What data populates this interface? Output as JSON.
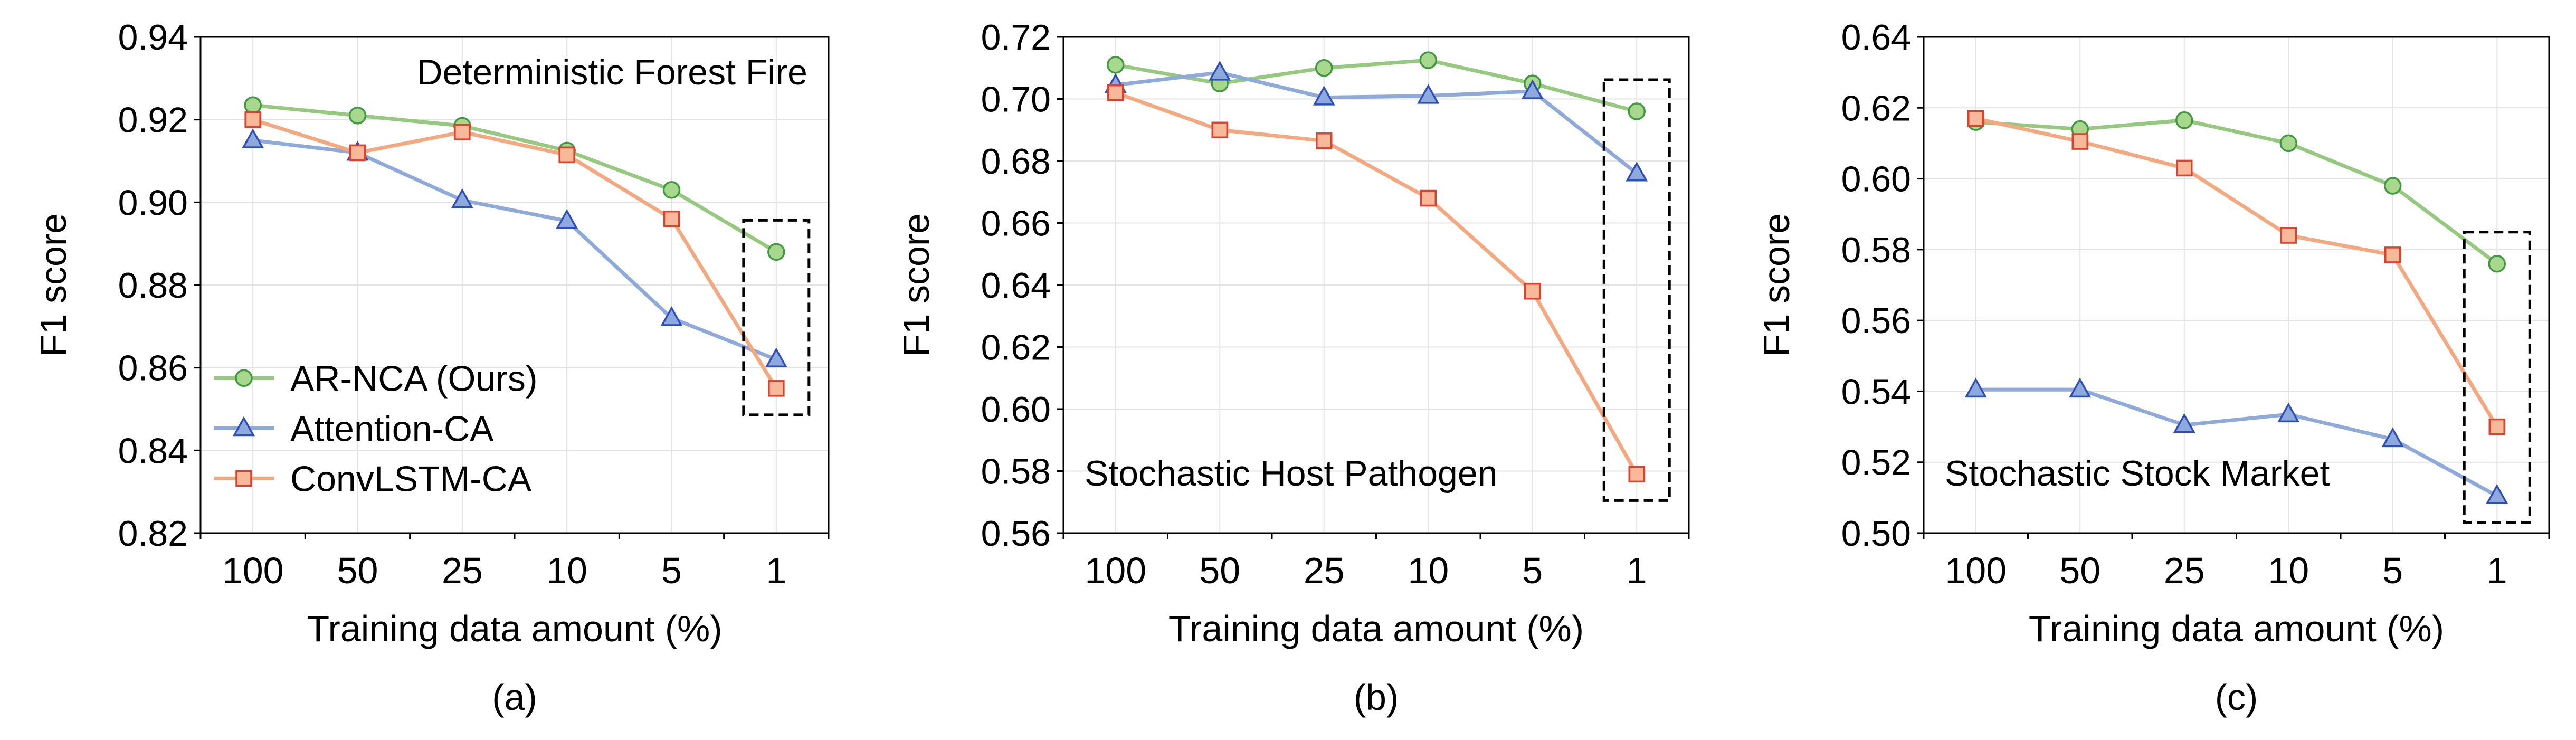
{
  "figure": {
    "legend": [
      {
        "label": "AR-NCA (Ours)",
        "color": "#95c97d",
        "marker_fill": "#a8d88e",
        "marker_stroke": "#3f9a3f",
        "marker": "circle"
      },
      {
        "label": "Attention-CA",
        "color": "#8ea9db",
        "marker_fill": "#8ea9db",
        "marker_stroke": "#2f4fb8",
        "marker": "triangle"
      },
      {
        "label": "ConvLSTM-CA",
        "color": "#f5a77e",
        "marker_fill": "#f7b99a",
        "marker_stroke": "#e0402c",
        "marker": "square"
      }
    ]
  },
  "chart_data": [
    {
      "type": "line",
      "panel_label": "(a)",
      "title": "Deterministic Forest Fire",
      "xlabel": "Training data amount (%)",
      "ylabel": "F1 score",
      "categories": [
        "100",
        "50",
        "25",
        "10",
        "5",
        "1"
      ],
      "ylim": [
        0.82,
        0.94
      ],
      "yticks": [
        "0.82",
        "0.84",
        "0.86",
        "0.88",
        "0.90",
        "0.92",
        "0.94"
      ],
      "grid": true,
      "legend_position": "lower-left",
      "highlight_category": "1",
      "series": [
        {
          "name": "AR-NCA (Ours)",
          "values": [
            0.9235,
            0.921,
            0.9185,
            0.9125,
            0.903,
            0.888
          ]
        },
        {
          "name": "Attention-CA",
          "values": [
            0.915,
            0.912,
            0.9005,
            0.8955,
            0.872,
            0.862
          ]
        },
        {
          "name": "ConvLSTM-CA",
          "values": [
            0.92,
            0.912,
            0.917,
            0.9115,
            0.896,
            0.855
          ]
        }
      ]
    },
    {
      "type": "line",
      "panel_label": "(b)",
      "title": "Stochastic Host Pathogen",
      "xlabel": "Training data amount (%)",
      "ylabel": "F1 score",
      "categories": [
        "100",
        "50",
        "25",
        "10",
        "5",
        "1"
      ],
      "ylim": [
        0.56,
        0.72
      ],
      "yticks": [
        "0.56",
        "0.58",
        "0.60",
        "0.62",
        "0.64",
        "0.66",
        "0.68",
        "0.70",
        "0.72"
      ],
      "grid": true,
      "legend_position": "none",
      "highlight_category": "1",
      "series": [
        {
          "name": "AR-NCA (Ours)",
          "values": [
            0.711,
            0.705,
            0.71,
            0.7125,
            0.705,
            0.696
          ]
        },
        {
          "name": "Attention-CA",
          "values": [
            0.7045,
            0.7085,
            0.7005,
            0.701,
            0.7025,
            0.676
          ]
        },
        {
          "name": "ConvLSTM-CA",
          "values": [
            0.702,
            0.69,
            0.6865,
            0.668,
            0.638,
            0.579
          ]
        }
      ]
    },
    {
      "type": "line",
      "panel_label": "(c)",
      "title": "Stochastic Stock Market",
      "xlabel": "Training data amount (%)",
      "ylabel": "F1 score",
      "categories": [
        "100",
        "50",
        "25",
        "10",
        "5",
        "1"
      ],
      "ylim": [
        0.5,
        0.64
      ],
      "yticks": [
        "0.50",
        "0.52",
        "0.54",
        "0.56",
        "0.58",
        "0.60",
        "0.62",
        "0.64"
      ],
      "grid": true,
      "legend_position": "none",
      "highlight_category": "1",
      "series": [
        {
          "name": "AR-NCA (Ours)",
          "values": [
            0.616,
            0.614,
            0.6165,
            0.61,
            0.598,
            0.576
          ]
        },
        {
          "name": "Attention-CA",
          "values": [
            0.5405,
            0.5405,
            0.5305,
            0.5335,
            0.5265,
            0.5105
          ]
        },
        {
          "name": "ConvLSTM-CA",
          "values": [
            0.617,
            0.6105,
            0.603,
            0.584,
            0.5785,
            0.53
          ]
        }
      ]
    }
  ]
}
